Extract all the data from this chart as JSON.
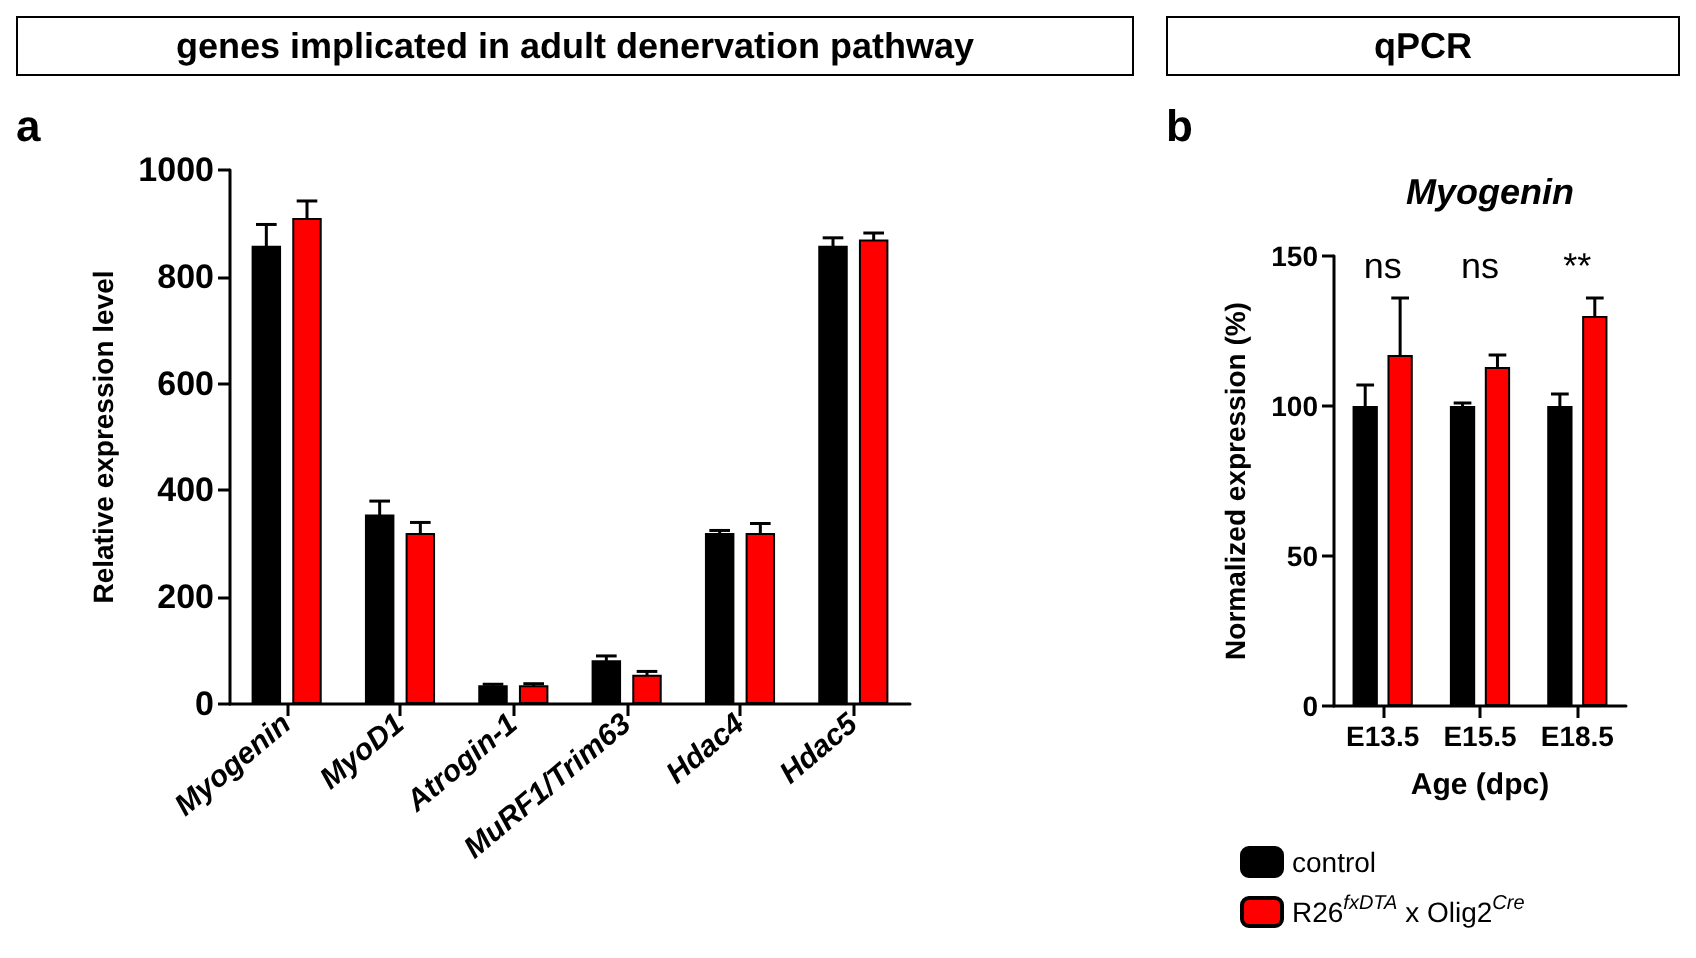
{
  "chart_data": [
    {
      "type": "bar",
      "title": "genes implicated in adult denervation pathway",
      "ylabel": "Relative expression level",
      "categories": [
        "Myogenin",
        "MyoD1",
        "Atrogin-1",
        "MuRF1/Trim63",
        "Hdac4",
        "Hdac5"
      ],
      "series": [
        {
          "color": "#000000",
          "values": [
            858,
            355,
            35,
            82,
            320,
            858
          ],
          "errors": [
            40,
            25,
            2,
            8,
            5,
            15
          ]
        },
        {
          "color": "#ff0000",
          "values": [
            910,
            320,
            35,
            55,
            320,
            870
          ],
          "errors": [
            32,
            20,
            3,
            6,
            18,
            12
          ]
        }
      ],
      "ylim": [
        0,
        1000
      ],
      "yticks": [
        0,
        200,
        400,
        600,
        800,
        1000
      ],
      "grid": false,
      "legend": false,
      "annotations": [
        "a"
      ]
    },
    {
      "type": "bar",
      "title": "qPCR",
      "subtitle": "Myogenin",
      "xlabel": "Age (dpc)",
      "ylabel": "Normalized expression (%)",
      "categories": [
        "E13.5",
        "E15.5",
        "E18.5"
      ],
      "series": [
        {
          "name": "control",
          "color": "#000000",
          "values": [
            100,
            100,
            100
          ],
          "errors": [
            7,
            1,
            4
          ]
        },
        {
          "name": "R26$^{fxDTA}$ x Olig2$^{Cre}$",
          "color": "#ff0000",
          "values": [
            117,
            113,
            130
          ],
          "errors": [
            19,
            4,
            6
          ]
        }
      ],
      "ylim": [
        0,
        150
      ],
      "yticks": [
        0,
        50,
        100,
        150
      ],
      "grid": false,
      "legend": "bottom",
      "annotations": [
        "b",
        "ns",
        "ns",
        "**"
      ]
    }
  ]
}
